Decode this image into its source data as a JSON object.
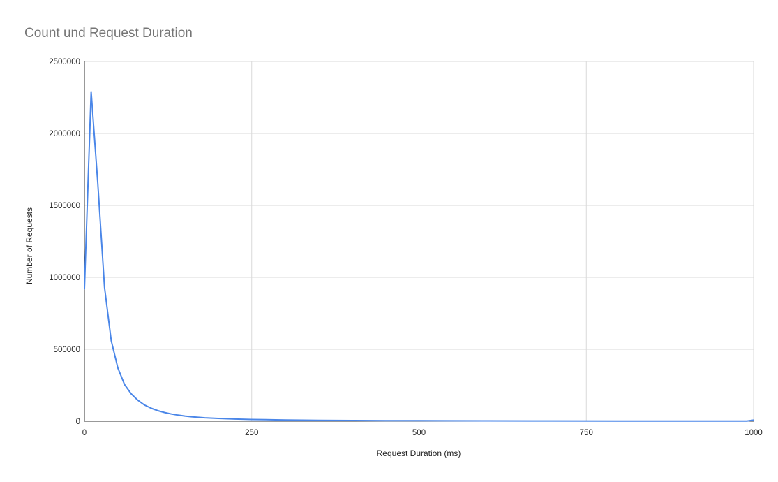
{
  "chart_data": {
    "type": "line",
    "title": "Count und Request Duration",
    "xlabel": "Request Duration (ms)",
    "ylabel": "Number of Requests",
    "xlim": [
      0,
      1000
    ],
    "ylim": [
      0,
      2500000
    ],
    "x_ticks": [
      0,
      250,
      500,
      750,
      1000
    ],
    "x_tick_labels": [
      "0",
      "250",
      "500",
      "750",
      "1000"
    ],
    "y_ticks": [
      0,
      500000,
      1000000,
      1500000,
      2000000,
      2500000
    ],
    "y_tick_labels": [
      "0",
      "500000",
      "1000000",
      "1500000",
      "2000000",
      "2500000"
    ],
    "grid": true,
    "legend": "none",
    "series": [
      {
        "color": "#4a86e8",
        "x": [
          0,
          10,
          20,
          30,
          40,
          50,
          60,
          70,
          80,
          90,
          100,
          110,
          120,
          130,
          140,
          150,
          160,
          180,
          200,
          225,
          250,
          300,
          350,
          400,
          450,
          500,
          600,
          700,
          800,
          900,
          990,
          1000
        ],
        "y": [
          920000,
          2290000,
          1650000,
          930000,
          560000,
          370000,
          255000,
          190000,
          145000,
          112000,
          90000,
          73000,
          60000,
          50000,
          42000,
          36000,
          31000,
          24000,
          19500,
          15000,
          12000,
          8500,
          6500,
          5000,
          4000,
          3300,
          2400,
          1800,
          1400,
          1100,
          1000,
          8000
        ]
      }
    ]
  }
}
